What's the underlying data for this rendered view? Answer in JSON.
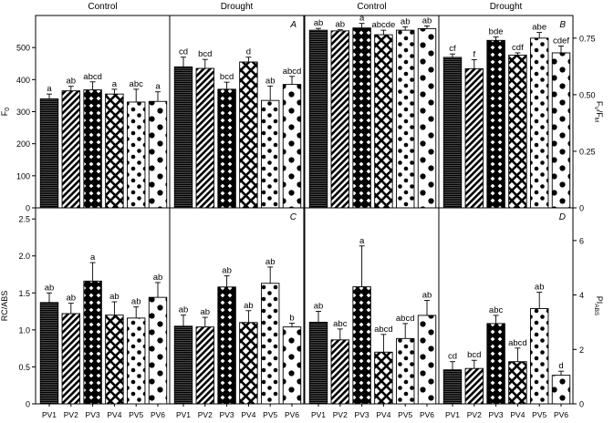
{
  "categories": [
    "PV1",
    "PV2",
    "PV3",
    "PV4",
    "PV5",
    "PV6"
  ],
  "chart_data": [
    {
      "type": "bar",
      "id": "A",
      "panel_letter": "A",
      "ylabel": "F₀",
      "ylim": [
        0,
        600
      ],
      "yticks": [
        "0",
        "100",
        "200",
        "300",
        "400",
        "500"
      ],
      "ytick_values": [
        0,
        100,
        200,
        300,
        400,
        500
      ],
      "left_title": "Control",
      "right_title": "Drought",
      "series": [
        {
          "name": "Control",
          "values": [
            340,
            365,
            368,
            355,
            330,
            332
          ],
          "errors": [
            15,
            14,
            25,
            15,
            40,
            30
          ],
          "labels": [
            "a",
            "ab",
            "abcd",
            "a",
            "abc",
            "a"
          ]
        },
        {
          "name": "Drought",
          "values": [
            440,
            435,
            370,
            455,
            335,
            385
          ],
          "errors": [
            30,
            28,
            22,
            15,
            45,
            25
          ],
          "labels": [
            "cd",
            "bcd",
            "bcd",
            "d",
            "ab",
            "abcd"
          ]
        }
      ]
    },
    {
      "type": "bar",
      "id": "B",
      "panel_letter": "B",
      "ylabel": "Fv/Fm",
      "ylim": [
        0,
        0.85
      ],
      "yticks": [
        "0",
        "0.25",
        "0.50",
        "0.75"
      ],
      "ytick_values": [
        0,
        0.25,
        0.5,
        0.75
      ],
      "left_title": "Control",
      "right_title": "Drought",
      "series": [
        {
          "name": "Control",
          "values": [
            0.785,
            0.782,
            0.795,
            0.765,
            0.785,
            0.792
          ],
          "errors": [
            0.008,
            0.005,
            0.02,
            0.02,
            0.015,
            0.012
          ],
          "labels": [
            "ab",
            "ab",
            "a",
            "abcde",
            "ab",
            "ab"
          ]
        },
        {
          "name": "Drought",
          "values": [
            0.665,
            0.615,
            0.74,
            0.675,
            0.75,
            0.685
          ],
          "errors": [
            0.015,
            0.04,
            0.015,
            0.01,
            0.025,
            0.03
          ],
          "labels": [
            "cf",
            "f",
            "bde",
            "cdf",
            "abe",
            "cdef"
          ]
        }
      ]
    },
    {
      "type": "bar",
      "id": "C",
      "panel_letter": "C",
      "ylabel": "RC/ABS",
      "ylim": [
        0,
        2.65
      ],
      "yticks": [
        "0",
        "0.5",
        "1.0",
        "1.5",
        "2.0",
        "2.5"
      ],
      "ytick_values": [
        0,
        0.5,
        1.0,
        1.5,
        2.0,
        2.5
      ],
      "series": [
        {
          "name": "Control",
          "values": [
            1.37,
            1.22,
            1.66,
            1.2,
            1.16,
            1.44
          ],
          "errors": [
            0.13,
            0.14,
            0.25,
            0.18,
            0.15,
            0.2
          ],
          "labels": [
            "ab",
            "ab",
            "a",
            "ab",
            "ab",
            "ab"
          ]
        },
        {
          "name": "Drought",
          "values": [
            1.05,
            1.04,
            1.58,
            1.1,
            1.63,
            1.04
          ],
          "errors": [
            0.15,
            0.13,
            0.15,
            0.16,
            0.22,
            0.05
          ],
          "labels": [
            "ab",
            "ab",
            "ab",
            "ab",
            "ab",
            "b"
          ]
        }
      ]
    },
    {
      "type": "bar",
      "id": "D",
      "panel_letter": "D",
      "ylabel": "PIABS",
      "ylim": [
        0,
        7.2
      ],
      "yticks": [
        "0",
        "2",
        "4",
        "6"
      ],
      "ytick_values": [
        0,
        2,
        4,
        6
      ],
      "series": [
        {
          "name": "Control",
          "values": [
            3.0,
            2.35,
            4.3,
            1.9,
            2.4,
            3.25
          ],
          "errors": [
            0.4,
            0.4,
            1.5,
            0.65,
            0.55,
            0.55
          ],
          "labels": [
            "ab",
            "abc",
            "a",
            "abcd",
            "abcd",
            "ab"
          ]
        },
        {
          "name": "Drought",
          "values": [
            1.25,
            1.3,
            2.95,
            1.55,
            3.5,
            1.05
          ],
          "errors": [
            0.3,
            0.3,
            0.3,
            0.5,
            0.6,
            0.15
          ],
          "labels": [
            "cd",
            "bcd",
            "abc",
            "abcd",
            "ab",
            "d"
          ]
        }
      ]
    }
  ]
}
